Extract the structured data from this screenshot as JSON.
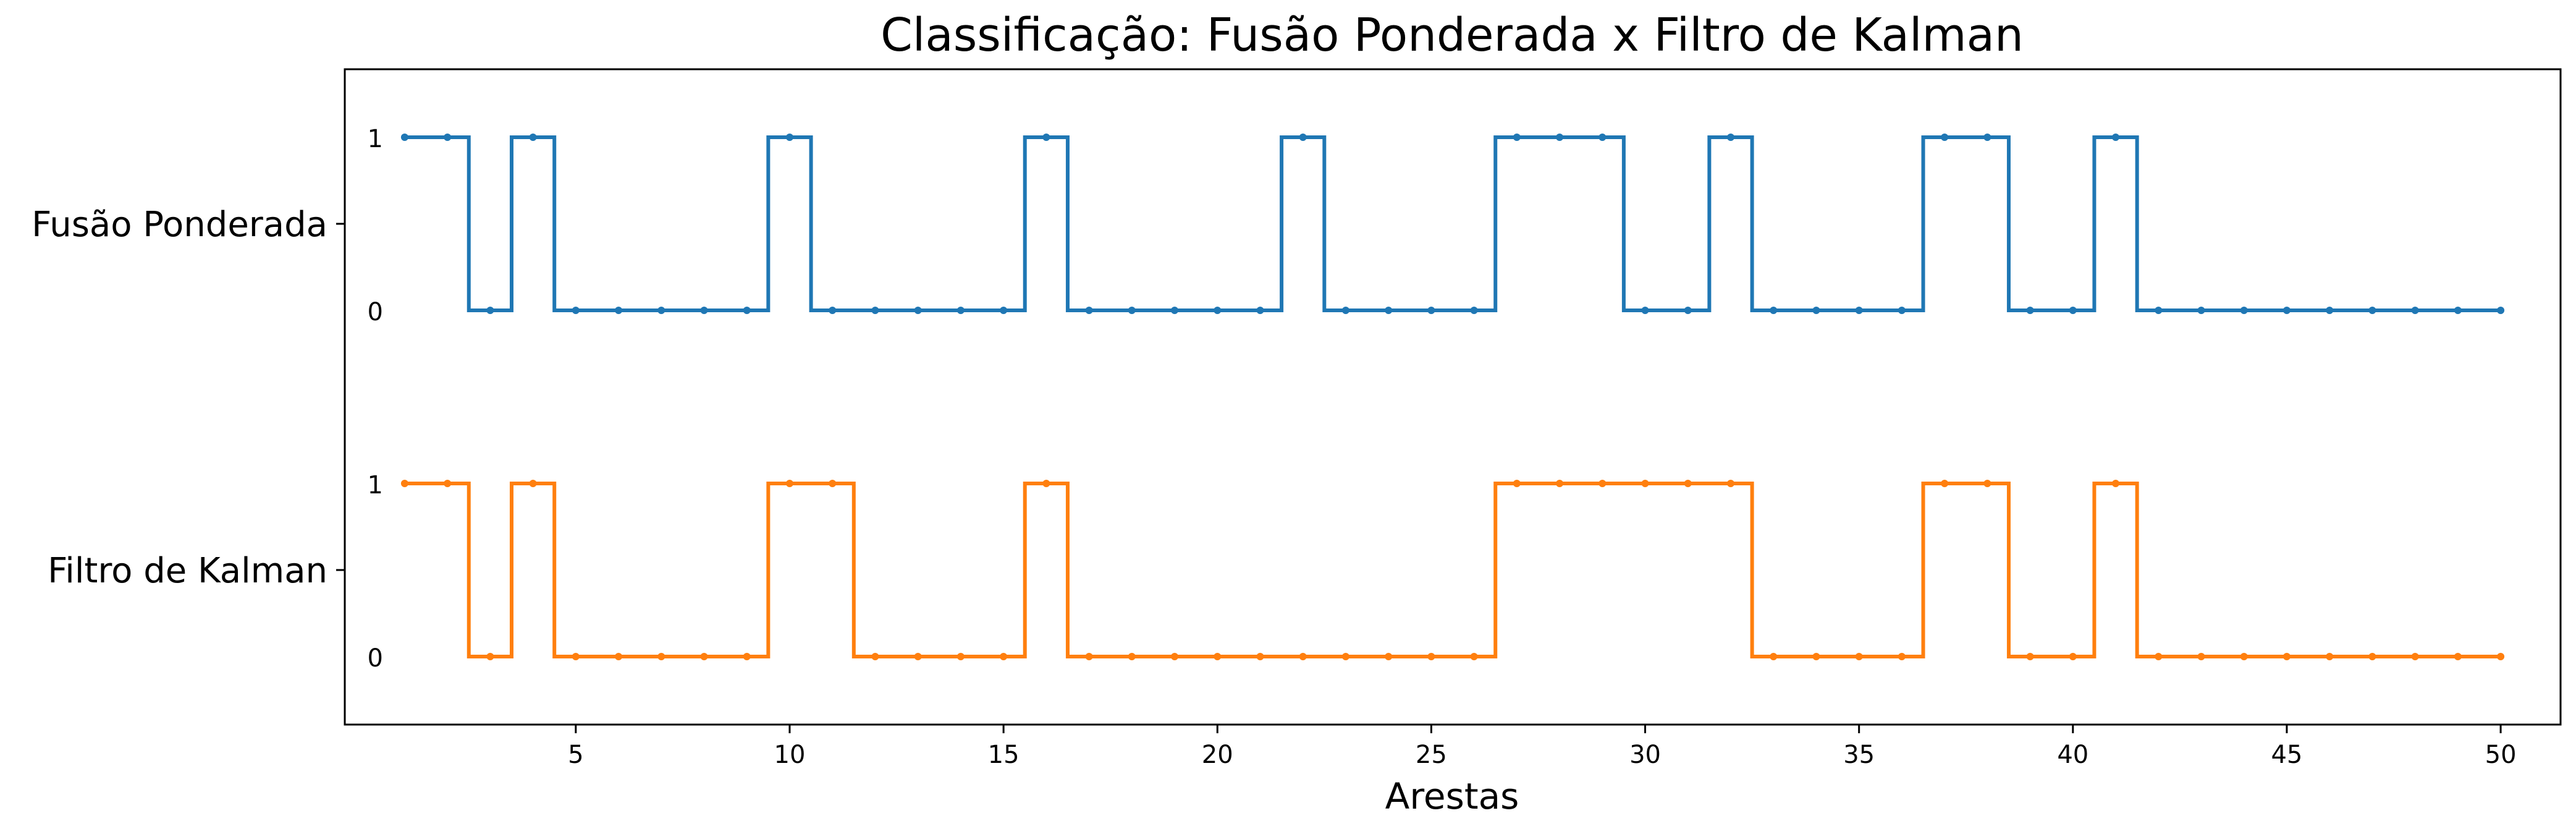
{
  "chart_data": {
    "type": "line",
    "title": "Classificação: Fusão Ponderada x Filtro de Kalman",
    "xlabel": "Arestas",
    "ylabel": "",
    "xlim": [
      -0.4,
      51.4
    ],
    "x_ticks": [
      5,
      10,
      15,
      20,
      25,
      30,
      35,
      40,
      45,
      50
    ],
    "y_tick_labels": [
      "Fusão Ponderada",
      "Filtro de Kalman"
    ],
    "step_labels": [
      "1",
      "0"
    ],
    "grid": false,
    "x": [
      1,
      2,
      3,
      4,
      5,
      6,
      7,
      8,
      9,
      10,
      11,
      12,
      13,
      14,
      15,
      16,
      17,
      18,
      19,
      20,
      21,
      22,
      23,
      24,
      25,
      26,
      27,
      28,
      29,
      30,
      31,
      32,
      33,
      34,
      35,
      36,
      37,
      38,
      39,
      40,
      41,
      42,
      43,
      44,
      45,
      46,
      47,
      48,
      49,
      50
    ],
    "series": [
      {
        "name": "Fusão Ponderada",
        "color": "#1f77b4",
        "values": [
          1,
          1,
          0,
          1,
          0,
          0,
          0,
          0,
          0,
          1,
          0,
          0,
          0,
          0,
          0,
          1,
          0,
          0,
          0,
          0,
          0,
          1,
          0,
          0,
          0,
          0,
          1,
          1,
          1,
          0,
          0,
          1,
          0,
          0,
          0,
          0,
          1,
          1,
          0,
          0,
          1,
          0,
          0,
          0,
          0,
          0,
          0,
          0,
          0,
          0
        ]
      },
      {
        "name": "Filtro de Kalman",
        "color": "#ff7f0e",
        "values": [
          1,
          1,
          0,
          1,
          0,
          0,
          0,
          0,
          0,
          1,
          1,
          0,
          0,
          0,
          0,
          1,
          0,
          0,
          0,
          0,
          0,
          0,
          0,
          0,
          0,
          0,
          1,
          1,
          1,
          1,
          1,
          1,
          0,
          0,
          0,
          0,
          1,
          1,
          0,
          0,
          1,
          0,
          0,
          0,
          0,
          0,
          0,
          0,
          0,
          0
        ]
      }
    ]
  }
}
